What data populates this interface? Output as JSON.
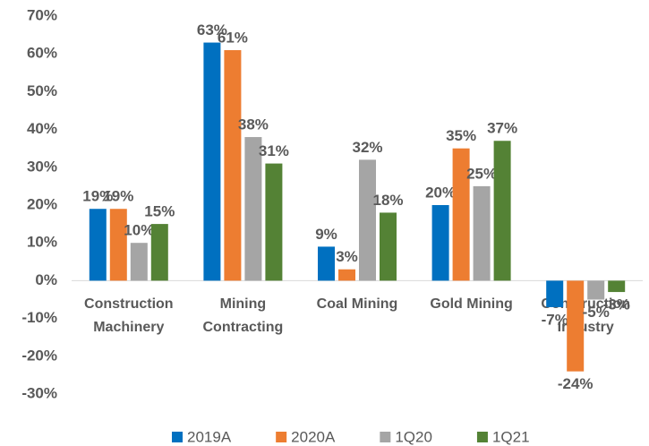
{
  "chart_data": {
    "type": "bar",
    "categories": [
      "Construction\nMachinery",
      "Mining\nContracting",
      "Coal Mining",
      "Gold Mining",
      "Construction\nIndustry"
    ],
    "series": [
      {
        "name": "2019A",
        "color": "#0070c0",
        "values": [
          19,
          63,
          9,
          20,
          -7
        ],
        "value_labels": [
          "19%",
          "63%",
          "9%",
          "20%",
          "-7%"
        ]
      },
      {
        "name": "2020A",
        "color": "#ed7d31",
        "values": [
          19,
          61,
          3,
          35,
          -24
        ],
        "value_labels": [
          "19%",
          "61%",
          "3%",
          "35%",
          "-24%"
        ]
      },
      {
        "name": "1Q20",
        "color": "#a5a5a5",
        "values": [
          10,
          38,
          32,
          25,
          -5
        ],
        "value_labels": [
          "10%",
          "38%",
          "32%",
          "25%",
          "-5%"
        ]
      },
      {
        "name": "1Q21",
        "color": "#548235",
        "values": [
          15,
          31,
          18,
          37,
          -3
        ],
        "value_labels": [
          "15%",
          "31%",
          "18%",
          "37%",
          "-3%"
        ]
      }
    ],
    "ylim": [
      -30,
      70
    ],
    "yticks": [
      {
        "value": -30,
        "label": "-30%"
      },
      {
        "value": -20,
        "label": "-20%"
      },
      {
        "value": -10,
        "label": "-10%"
      },
      {
        "value": 0,
        "label": "0%"
      },
      {
        "value": 10,
        "label": "10%"
      },
      {
        "value": 20,
        "label": "20%"
      },
      {
        "value": 30,
        "label": "30%"
      },
      {
        "value": 40,
        "label": "40%"
      },
      {
        "value": 50,
        "label": "50%"
      },
      {
        "value": 60,
        "label": "60%"
      },
      {
        "value": 70,
        "label": "70%"
      }
    ],
    "grid": false,
    "legend": "bottom"
  }
}
